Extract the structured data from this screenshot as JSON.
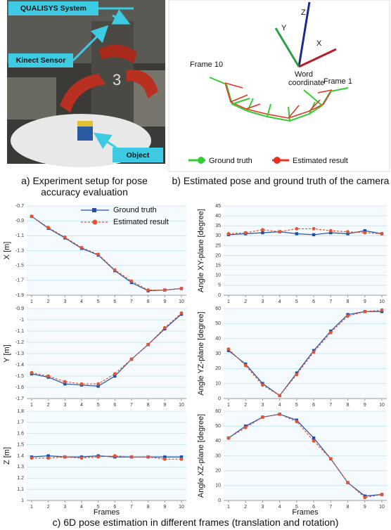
{
  "photo": {
    "labels": [
      "QUALISYS System",
      "Kinect Sensor",
      "Object"
    ],
    "robot_number": "3"
  },
  "diagram": {
    "axes": [
      "Z",
      "Y",
      "X"
    ],
    "origin_label": "Word coordinate",
    "frame_labels": [
      "Frame 10",
      "Frame 1"
    ],
    "legend": [
      "Ground truth",
      "Estimated result"
    ]
  },
  "captions": [
    "a) Experiment setup for pose accuracy evaluation",
    "b) Estimated pose and ground truth of the camera",
    "c) 6D pose estimation in different frames (translation and rotation)"
  ],
  "chart_data": [
    {
      "type": "line",
      "ylabel": "X [m]",
      "x": [
        1,
        2,
        3,
        4,
        5,
        6,
        7,
        8,
        9,
        10
      ],
      "xlim": [
        1,
        10
      ],
      "xticks": [
        1,
        2,
        3,
        4,
        5,
        6,
        7,
        8,
        9,
        10
      ],
      "ylim": [
        -1.9,
        -0.7
      ],
      "yticks": [
        -0.7,
        -0.9,
        -1.1,
        -1.3,
        -1.5,
        -1.7,
        -1.9
      ],
      "grid": true,
      "legend": "top-right",
      "series": [
        {
          "name": "Ground truth",
          "color": "#1f4fa8",
          "marker": "square",
          "line_style": "solid",
          "values": [
            -0.84,
            -1.0,
            -1.13,
            -1.27,
            -1.36,
            -1.57,
            -1.73,
            -1.84,
            -1.83,
            -1.81
          ]
        },
        {
          "name": "Estimated result",
          "color": "#e8532f",
          "marker": "circle",
          "line_style": "dashed",
          "values": [
            -0.84,
            -0.99,
            -1.12,
            -1.26,
            -1.35,
            -1.56,
            -1.71,
            -1.83,
            -1.83,
            -1.81
          ]
        }
      ]
    },
    {
      "type": "line",
      "ylabel": "Angle XY-plane [degree]",
      "x": [
        1,
        2,
        3,
        4,
        5,
        6,
        7,
        8,
        9,
        10
      ],
      "xlim": [
        1,
        10
      ],
      "xticks": [
        1,
        2,
        3,
        4,
        5,
        6,
        7,
        8,
        9,
        10
      ],
      "ylim": [
        0,
        45
      ],
      "yticks": [
        0,
        5,
        10,
        15,
        20,
        25,
        30,
        35,
        40,
        45
      ],
      "grid": true,
      "series": [
        {
          "color": "#1f4fa8",
          "marker": "square",
          "line_style": "solid",
          "values": [
            30.5,
            31,
            31.5,
            32,
            31,
            30.5,
            31.5,
            31,
            32.5,
            31
          ]
        },
        {
          "color": "#e8532f",
          "marker": "circle",
          "line_style": "dashed",
          "values": [
            31,
            31.5,
            33,
            32,
            33.5,
            33.5,
            32.5,
            32,
            31.5,
            31
          ]
        }
      ]
    },
    {
      "type": "line",
      "ylabel": "Y [m]",
      "x": [
        1,
        2,
        3,
        4,
        5,
        6,
        7,
        8,
        9,
        10
      ],
      "xlim": [
        1,
        10
      ],
      "xticks": [
        1,
        2,
        3,
        4,
        5,
        6,
        7,
        8,
        9,
        10
      ],
      "ylim": [
        -1.7,
        -0.9
      ],
      "yticks": [
        -0.9,
        -1,
        -1.1,
        -1.2,
        -1.3,
        -1.4,
        -1.5,
        -1.6,
        -1.7
      ],
      "grid": true,
      "series": [
        {
          "color": "#1f4fa8",
          "marker": "square",
          "line_style": "solid",
          "values": [
            -1.48,
            -1.51,
            -1.57,
            -1.58,
            -1.59,
            -1.5,
            -1.35,
            -1.22,
            -1.08,
            -0.95
          ]
        },
        {
          "color": "#e8532f",
          "marker": "circle",
          "line_style": "dashed",
          "values": [
            -1.47,
            -1.5,
            -1.55,
            -1.57,
            -1.57,
            -1.48,
            -1.35,
            -1.22,
            -1.07,
            -0.94
          ]
        }
      ]
    },
    {
      "type": "line",
      "ylabel": "Angle YZ-plane [degree]",
      "x": [
        1,
        2,
        3,
        4,
        5,
        6,
        7,
        8,
        9,
        10
      ],
      "xlim": [
        1,
        10
      ],
      "xticks": [
        1,
        2,
        3,
        4,
        5,
        6,
        7,
        8,
        9,
        10
      ],
      "ylim": [
        0,
        60
      ],
      "yticks": [
        0,
        10,
        20,
        30,
        40,
        50,
        60
      ],
      "grid": true,
      "series": [
        {
          "color": "#1f4fa8",
          "marker": "square",
          "line_style": "solid",
          "values": [
            32,
            23,
            10,
            2,
            17,
            32,
            45,
            56,
            58,
            58
          ]
        },
        {
          "color": "#e8532f",
          "marker": "circle",
          "line_style": "dashed",
          "values": [
            33,
            22,
            9,
            2,
            16,
            31,
            44,
            55,
            58,
            59
          ]
        }
      ]
    },
    {
      "type": "line",
      "ylabel": "Z [m]",
      "xlabel": "Frames",
      "x": [
        1,
        2,
        3,
        4,
        5,
        6,
        7,
        8,
        9,
        10
      ],
      "xlim": [
        1,
        10
      ],
      "xticks": [
        1,
        2,
        3,
        4,
        5,
        6,
        7,
        8,
        9,
        10
      ],
      "ylim": [
        1,
        1.8
      ],
      "yticks": [
        1,
        1.1,
        1.2,
        1.3,
        1.4,
        1.5,
        1.6,
        1.7,
        1.8
      ],
      "grid": true,
      "series": [
        {
          "color": "#1f4fa8",
          "marker": "square",
          "line_style": "solid",
          "values": [
            1.39,
            1.4,
            1.39,
            1.39,
            1.4,
            1.39,
            1.39,
            1.39,
            1.39,
            1.39
          ]
        },
        {
          "color": "#e8532f",
          "marker": "circle",
          "line_style": "dashed",
          "values": [
            1.38,
            1.38,
            1.39,
            1.38,
            1.39,
            1.4,
            1.39,
            1.39,
            1.37,
            1.37
          ]
        }
      ]
    },
    {
      "type": "line",
      "ylabel": "Angle XZ-plane [degree]",
      "xlabel": "Frames",
      "x": [
        1,
        2,
        3,
        4,
        5,
        6,
        7,
        8,
        9,
        10
      ],
      "xlim": [
        1,
        10
      ],
      "xticks": [
        1,
        2,
        3,
        4,
        5,
        6,
        7,
        8,
        9,
        10
      ],
      "ylim": [
        0,
        60
      ],
      "yticks": [
        0,
        10,
        20,
        30,
        40,
        50,
        60
      ],
      "grid": true,
      "series": [
        {
          "color": "#1f4fa8",
          "marker": "square",
          "line_style": "solid",
          "values": [
            42,
            50,
            56,
            58,
            54,
            42,
            28,
            12,
            3,
            4
          ]
        },
        {
          "color": "#e8532f",
          "marker": "circle",
          "line_style": "dashed",
          "values": [
            42,
            49,
            56,
            58,
            53,
            40,
            28,
            12,
            2,
            4
          ]
        }
      ]
    }
  ]
}
